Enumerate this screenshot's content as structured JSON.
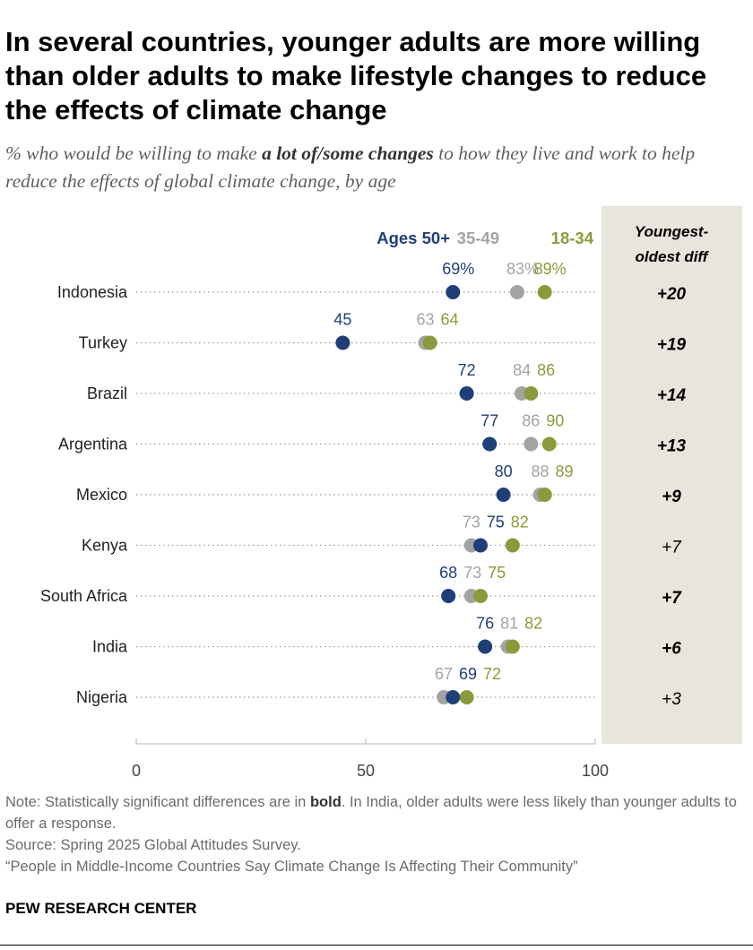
{
  "title": "In several countries, younger adults are more willing than older adults to make lifestyle changes to reduce the effects of climate change",
  "subtitle": {
    "before": "% who would be willing to make ",
    "emphasis": "a lot of/some changes",
    "after": " to how they live and work to help reduce the effects of global climate change, by age"
  },
  "notes": {
    "note_before": "Note: Statistically significant differences are in ",
    "note_bold": "bold",
    "note_after": ". In India, older adults were less likely than younger adults to offer a response.",
    "source": "Source: Spring 2025 Global Attitudes Survey.",
    "report": "“People in Middle-Income Countries Say Climate Change Is Affecting Their Community”"
  },
  "footer": "PEW RESEARCH CENTER",
  "chart_data": {
    "type": "scatter",
    "xlim": [
      0,
      100
    ],
    "x_ticks": [
      0,
      50,
      100
    ],
    "grid": false,
    "legend_position": "top",
    "diff_header": [
      "Youngest-",
      "oldest diff"
    ],
    "colors": {
      "ages_50_plus": "#1f3f78",
      "ages_35_49": "#a3a3a3",
      "ages_18_34": "#8b9a3a",
      "diff_bg": "#e9e5dd"
    },
    "series": [
      {
        "key": "ages_50_plus",
        "name": "Ages 50+"
      },
      {
        "key": "ages_35_49",
        "name": "35-49"
      },
      {
        "key": "ages_18_34",
        "name": "18-34"
      }
    ],
    "categories": [
      "Indonesia",
      "Turkey",
      "Brazil",
      "Argentina",
      "Mexico",
      "Kenya",
      "South Africa",
      "India",
      "Nigeria"
    ],
    "rows": [
      {
        "country": "Indonesia",
        "ages_50_plus": 69,
        "ages_35_49": 83,
        "ages_18_34": 89,
        "diff": "+20",
        "significant": true
      },
      {
        "country": "Turkey",
        "ages_50_plus": 45,
        "ages_35_49": 63,
        "ages_18_34": 64,
        "diff": "+19",
        "significant": true
      },
      {
        "country": "Brazil",
        "ages_50_plus": 72,
        "ages_35_49": 84,
        "ages_18_34": 86,
        "diff": "+14",
        "significant": true
      },
      {
        "country": "Argentina",
        "ages_50_plus": 77,
        "ages_35_49": 86,
        "ages_18_34": 90,
        "diff": "+13",
        "significant": true
      },
      {
        "country": "Mexico",
        "ages_50_plus": 80,
        "ages_35_49": 88,
        "ages_18_34": 89,
        "diff": "+9",
        "significant": true
      },
      {
        "country": "Kenya",
        "ages_50_plus": 75,
        "ages_35_49": 73,
        "ages_18_34": 82,
        "diff": "+7",
        "significant": false
      },
      {
        "country": "South Africa",
        "ages_50_plus": 68,
        "ages_35_49": 73,
        "ages_18_34": 75,
        "diff": "+7",
        "significant": true
      },
      {
        "country": "India",
        "ages_50_plus": 76,
        "ages_35_49": 81,
        "ages_18_34": 82,
        "diff": "+6",
        "significant": true
      },
      {
        "country": "Nigeria",
        "ages_50_plus": 69,
        "ages_35_49": 67,
        "ages_18_34": 72,
        "diff": "+3",
        "significant": false
      }
    ]
  }
}
